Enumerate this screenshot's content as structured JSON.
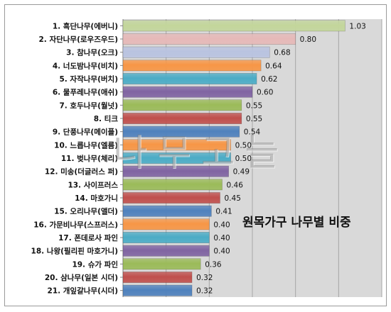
{
  "chart_data": {
    "type": "bar",
    "orientation": "horizontal",
    "title": "",
    "xlabel": "",
    "ylabel": "",
    "xlim": [
      0,
      1.2
    ],
    "grid": true,
    "legend": "none",
    "annotation": "원목가구 나무별 비중",
    "categories": [
      "1. 흑단나무(에버니)",
      "2. 자단나무(로우즈우드)",
      "3. 참나무(오크)",
      "4. 너도밤나무(비치)",
      "5. 자작나무(버치)",
      "6. 물푸레나무(애쉬)",
      "7. 호두나무(월넛)",
      "8. 티크",
      "9. 단풍나무(메이플)",
      "10. 느릅나무(엘름)",
      "11. 벚나무(체리)",
      "12. 미송(더글러스 퍼)",
      "13. 사이프러스",
      "14. 마호가니",
      "15. 오리나무(앨더)",
      "16. 가문비나무(스프러스)",
      "17. 폰데로사 파인",
      "18. 나왕(필리핀 마호가니)",
      "19. 슈가 파인",
      "20. 삼나무(일본 시더)",
      "21. 개잎갈나무(시더)"
    ],
    "values": [
      1.03,
      0.8,
      0.68,
      0.64,
      0.62,
      0.6,
      0.55,
      0.55,
      0.54,
      0.5,
      0.5,
      0.49,
      0.46,
      0.45,
      0.41,
      0.4,
      0.4,
      0.4,
      0.36,
      0.32,
      0.32
    ],
    "value_labels": [
      "1.03",
      "0.80",
      "0.68",
      "0.64",
      "0.62",
      "0.60",
      "0.55",
      "0.55",
      "0.54",
      "0.50",
      "0.50",
      "0.49",
      "0.46",
      "0.45",
      "0.41",
      "0.40",
      "0.40",
      "0.40",
      "0.36",
      "0.32",
      "0.32"
    ],
    "colors": [
      "#c3d69b",
      "#e6b9b8",
      "#b9c3e0",
      "#f79646",
      "#4bacc6",
      "#8064a2",
      "#9bbb59",
      "#c0504d",
      "#4f81bd",
      "#f79646",
      "#4bacc6",
      "#8064a2",
      "#9bbb59",
      "#c0504d",
      "#4f81bd",
      "#f79646",
      "#4bacc6",
      "#8064a2",
      "#9bbb59",
      "#c0504d",
      "#4f81bd"
    ],
    "plot_background": "#d9d9d9"
  },
  "watermark": "나무고늘"
}
